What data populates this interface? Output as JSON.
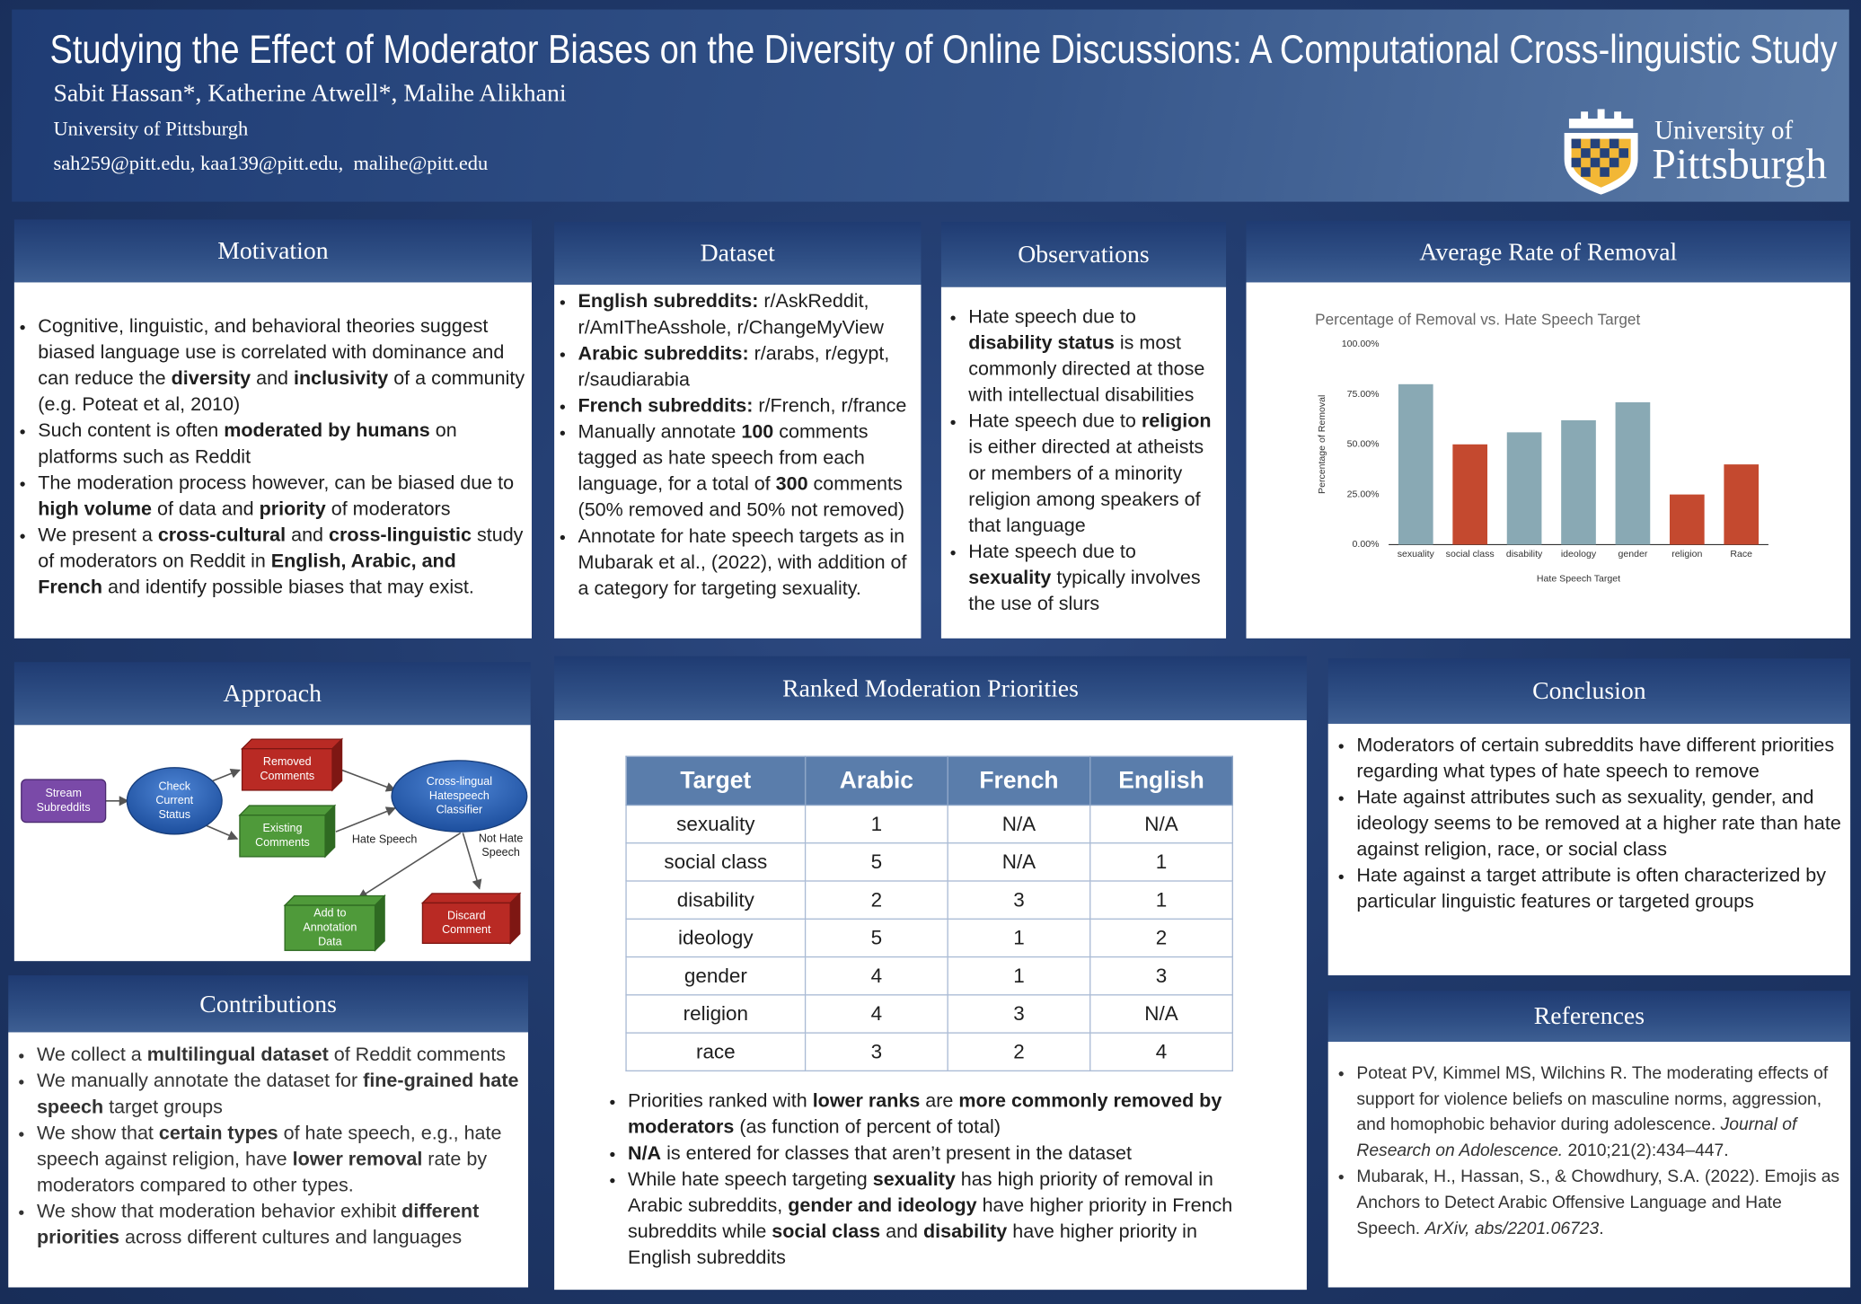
{
  "header": {
    "title": "Studying the Effect of Moderator Biases on the Diversity of Online Discussions: A Computational Cross-linguistic Study",
    "authors": "Sabit Hassan*, Katherine Atwell*, Malihe Alikhani",
    "affiliation": "University of Pittsburgh",
    "emails": "sah259@pitt.edu, kaa139@pitt.edu,  malihe@pitt.edu",
    "logo": [
      "University of",
      "Pittsburgh"
    ]
  },
  "sections": {
    "motivation": {
      "title": "Motivation",
      "bullets": [
        [
          "Cognitive, linguistic, and behavioral theories suggest biased language use is correlated with dominance and can reduce the ",
          {
            "b": "diversity"
          },
          " and ",
          {
            "b": "inclusivity"
          },
          " of a community (e.g. Poteat et al, 2010)"
        ],
        [
          "Such content is often ",
          {
            "b": "moderated by humans"
          },
          " on platforms such as Reddit"
        ],
        [
          "The moderation process however, can be biased due to ",
          {
            "b": "high volume"
          },
          " of data and ",
          {
            "b": "priority"
          },
          " of moderators"
        ],
        [
          "We present a ",
          {
            "b": "cross-cultural"
          },
          " and ",
          {
            "b": "cross-linguistic"
          },
          " study of moderators on Reddit in ",
          {
            "b": "English, Arabic, and French"
          },
          " and identify possible biases that may exist."
        ]
      ]
    },
    "dataset": {
      "title": "Dataset",
      "bullets": [
        [
          {
            "b": "English subreddits:"
          },
          " r/AskReddit, r/AmITheAsshole, r/ChangeMyView"
        ],
        [
          {
            "b": "Arabic subreddits:"
          },
          " r/arabs, r/egypt, r/saudiarabia"
        ],
        [
          {
            "b": "French subreddits:"
          },
          " r/French, r/france"
        ],
        [
          "Manually annotate ",
          {
            "b": "100"
          },
          " comments tagged as hate speech from each language, for a total of ",
          {
            "b": "300"
          },
          " comments (50% removed and 50% not removed)"
        ],
        [
          "Annotate for hate speech targets as in Mubarak et al., (2022), with addition of a category for targeting sexuality."
        ]
      ]
    },
    "observations": {
      "title": "Observations",
      "bullets": [
        [
          "Hate speech due to ",
          {
            "b": "disability status"
          },
          " is most commonly directed at those with intellectual disabilities"
        ],
        [
          "Hate speech due to ",
          {
            "b": "religion"
          },
          " is either directed at atheists or members of a minority religion among speakers of that language"
        ],
        [
          "Hate speech due to ",
          {
            "b": "sexuality"
          },
          " typically involves the use of slurs"
        ]
      ]
    },
    "removal": {
      "title": "Average Rate of Removal"
    },
    "approach": {
      "title": "Approach",
      "nodes": [
        [
          "Stream",
          "Subreddits"
        ],
        [
          "Check",
          "Current",
          "Status"
        ],
        [
          "Removed",
          "Comments"
        ],
        [
          "Existing",
          "Comments"
        ],
        [
          "Cross-lingual",
          "Hatespeech",
          "Classifier"
        ],
        [
          "Add to",
          "Annotation",
          "Data"
        ],
        [
          "Discard",
          "Comment"
        ]
      ],
      "edge_labels": [
        [
          "Hate Speech"
        ],
        [
          "Not Hate",
          "Speech"
        ]
      ]
    },
    "contributions": {
      "title": "Contributions",
      "bullets": [
        [
          "We collect a ",
          {
            "b": "multilingual dataset"
          },
          " of Reddit comments"
        ],
        [
          "We manually annotate the dataset for ",
          {
            "b": "fine-grained hate speech"
          },
          " target groups"
        ],
        [
          "We show that ",
          {
            "b": "certain types"
          },
          " of hate speech, e.g., hate speech against religion, have ",
          {
            "b": "lower removal"
          },
          " rate by moderators compared to other types."
        ],
        [
          "We show that moderation behavior exhibit ",
          {
            "b": "different priorities"
          },
          " across different cultures and languages"
        ]
      ]
    },
    "ranked": {
      "title": "Ranked Moderation Priorities",
      "bullets": [
        [
          "Priorities ranked with ",
          {
            "b": "lower ranks"
          },
          " are ",
          {
            "b": "more commonly removed by moderators"
          },
          " (as function of percent of total)"
        ],
        [
          {
            "b": "N/A"
          },
          " is entered for classes that aren’t present in the dataset"
        ],
        [
          "While hate speech targeting ",
          {
            "b": "sexuality"
          },
          " has high priority of removal in Arabic subreddits, ",
          {
            "b": "gender and ideology"
          },
          " have higher priority in French subreddits while ",
          {
            "b": "social class"
          },
          " and ",
          {
            "b": "disability"
          },
          " have higher priority in English subreddits"
        ]
      ]
    },
    "conclusion": {
      "title": "Conclusion",
      "bullets": [
        [
          "Moderators of certain subreddits have different priorities regarding what types of hate speech to remove"
        ],
        [
          "Hate against attributes such as sexuality, gender, and ideology seems to be removed at a higher rate than hate against religion, race, or social class"
        ],
        [
          "Hate against a target attribute is often characterized by particular linguistic features or targeted groups"
        ]
      ]
    },
    "references": {
      "title": "References",
      "bullets": [
        [
          "Poteat PV, Kimmel MS, Wilchins R. The moderating effects of support for violence beliefs on masculine norms, aggression, and homophobic behavior during adolescence. ",
          {
            "i": "Journal of Research on Adolescence."
          },
          " 2010;21(2):434–447."
        ],
        [
          "Mubarak, H., Hassan, S., & Chowdhury, S.A. (2022). Emojis as Anchors to Detect Arabic Offensive Language and Hate Speech. ",
          {
            "i": "ArXiv, abs/2201.06723"
          },
          "."
        ]
      ]
    }
  },
  "table": {
    "header": [
      "Target",
      "Arabic",
      "French",
      "English"
    ],
    "rows": [
      [
        "sexuality",
        1,
        "N/A",
        "N/A"
      ],
      [
        "social class",
        5,
        "N/A",
        1
      ],
      [
        "disability",
        2,
        3,
        1
      ],
      [
        "ideology",
        5,
        1,
        2
      ],
      [
        "gender",
        4,
        1,
        3
      ],
      [
        "religion",
        4,
        3,
        "N/A"
      ],
      [
        "race",
        3,
        2,
        4
      ]
    ]
  },
  "chart_data": {
    "type": "bar",
    "title": "Percentage of Removal vs. Hate Speech Target",
    "x_label": "Hate Speech Target",
    "y_label": "Percentage of Removal",
    "categories": [
      "sexuality",
      "social class",
      "disability",
      "ideology",
      "gender",
      "religion",
      "Race"
    ],
    "values": [
      80,
      50,
      56,
      62,
      71,
      25,
      40
    ],
    "colors": [
      "#89a9b4",
      "#c4492f",
      "#89a9b4",
      "#89a9b4",
      "#89a9b4",
      "#c4492f",
      "#c4492f"
    ],
    "ylim": [
      0,
      100
    ],
    "yticks": [
      {
        "value": 0,
        "label": "0.00%"
      },
      {
        "value": 25,
        "label": "25.00%"
      },
      {
        "value": 50,
        "label": "50.00%"
      },
      {
        "value": 75,
        "label": "75.00%"
      },
      {
        "value": 100,
        "label": "100.00%"
      }
    ],
    "grid": false
  }
}
